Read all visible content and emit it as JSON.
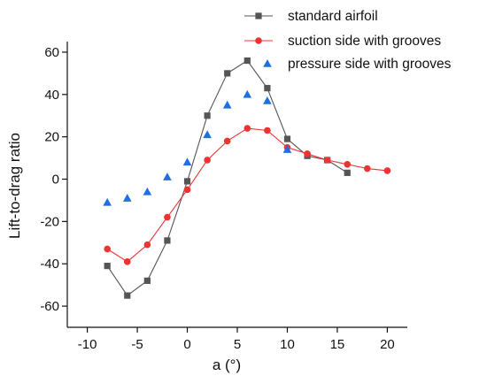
{
  "chart_data": {
    "type": "line",
    "xlabel": "a (°)",
    "ylabel": "Lift-to-drag ratio",
    "xlim": [
      -12,
      22
    ],
    "ylim": [
      -70,
      65
    ],
    "xticks": [
      -10,
      -5,
      0,
      5,
      10,
      15,
      20
    ],
    "yticks": [
      -60,
      -40,
      -20,
      0,
      20,
      40,
      60
    ],
    "grid": false,
    "legend_position": "top-right",
    "series": [
      {
        "name": "standard airfoil",
        "color": "#555555",
        "marker": "square",
        "line": true,
        "x": [
          -8,
          -6,
          -4,
          -2,
          0,
          2,
          4,
          6,
          8,
          10,
          12,
          14,
          16
        ],
        "y": [
          -41,
          -55,
          -48,
          -29,
          -1,
          30,
          50,
          56,
          43,
          19,
          11,
          9,
          3
        ]
      },
      {
        "name": "suction side with grooves",
        "color": "#ee3333",
        "marker": "circle",
        "line": true,
        "x": [
          -8,
          -6,
          -4,
          -2,
          0,
          2,
          4,
          6,
          8,
          10,
          12,
          14,
          16,
          18,
          20
        ],
        "y": [
          -33,
          -39,
          -31,
          -18,
          -5,
          9,
          18,
          24,
          23,
          15,
          12,
          9,
          7,
          5,
          4
        ]
      },
      {
        "name": "pressure side with grooves",
        "color": "#1e6fe0",
        "marker": "triangle",
        "line": false,
        "x": [
          -8,
          -6,
          -4,
          -2,
          0,
          2,
          4,
          6,
          8,
          10
        ],
        "y": [
          -11,
          -9,
          -6,
          1,
          8,
          21,
          35,
          40,
          37,
          14
        ]
      }
    ]
  }
}
